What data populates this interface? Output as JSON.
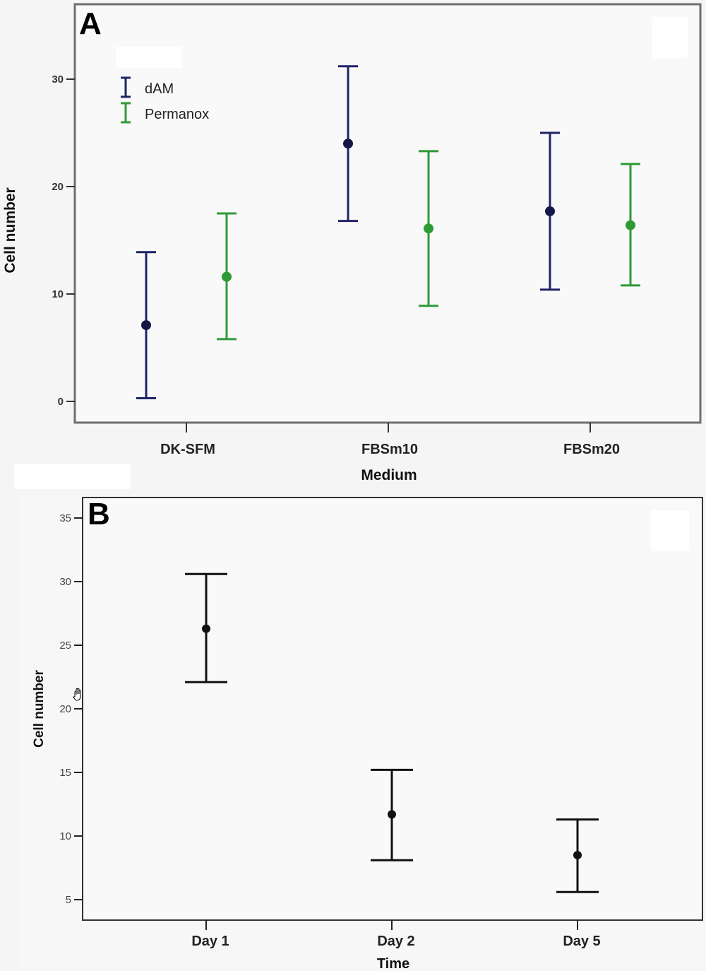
{
  "chart_data": [
    {
      "panel": "A",
      "type": "errorbar",
      "title": "",
      "xlabel": "Medium",
      "ylabel": "Cell number",
      "ylim": [
        -2,
        36
      ],
      "yticks": [
        0,
        10,
        20,
        30
      ],
      "ytick_labels": [
        "0",
        "10",
        "20",
        "30"
      ],
      "categories": [
        "DK-SFM",
        "FBSm10",
        "FBSm20"
      ],
      "legend": {
        "placement": "top-left",
        "entries": [
          "dAM",
          "Permanox"
        ]
      },
      "grid": false,
      "series": [
        {
          "name": "dAM",
          "color": "#1f2466",
          "mean": [
            7.1,
            24.0,
            17.7
          ],
          "lower": [
            0.3,
            16.8,
            10.4
          ],
          "upper": [
            13.9,
            31.2,
            25.0
          ]
        },
        {
          "name": "Permanox",
          "color": "#2e9a35",
          "mean": [
            11.6,
            16.1,
            16.4
          ],
          "lower": [
            5.8,
            8.9,
            10.8
          ],
          "upper": [
            17.5,
            23.3,
            22.1
          ]
        }
      ]
    },
    {
      "panel": "B",
      "type": "errorbar",
      "title": "",
      "xlabel": "Time",
      "ylabel": "Cell number",
      "ylim": [
        3.3,
        36.7
      ],
      "yticks": [
        5,
        10,
        15,
        20,
        25,
        30,
        35
      ],
      "ytick_labels": [
        "5",
        "10",
        "15",
        "20",
        "25",
        "30",
        "35"
      ],
      "categories": [
        "Day 1",
        "Day 2",
        "Day 5"
      ],
      "grid": false,
      "series": [
        {
          "name": "Cell number",
          "color": "#111111",
          "mean": [
            26.3,
            11.7,
            8.5
          ],
          "lower": [
            22.1,
            8.1,
            5.6
          ],
          "upper": [
            30.6,
            15.2,
            11.3
          ]
        }
      ]
    }
  ],
  "panels": {
    "a_letter": "A",
    "b_letter": "B"
  },
  "cursor_icon": "hand-grab-cursor"
}
